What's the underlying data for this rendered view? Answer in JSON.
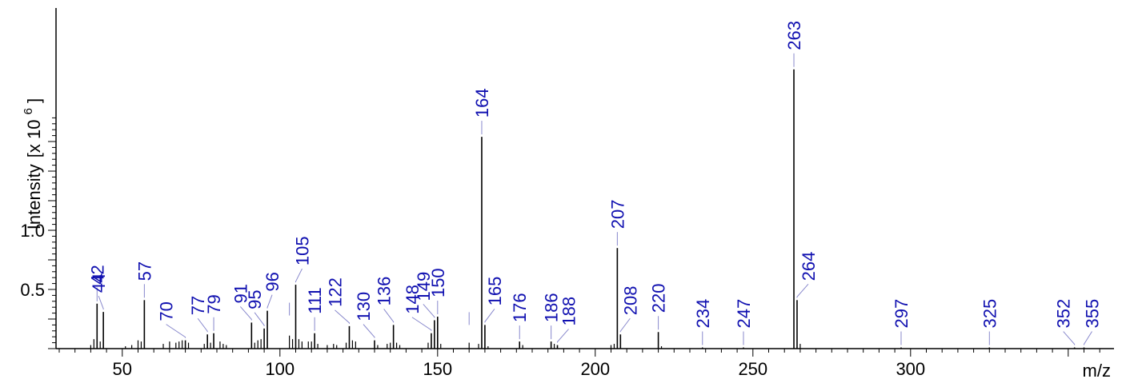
{
  "chart_data": {
    "type": "bar",
    "title": "",
    "xlabel": "m/z",
    "ylabel": "Intensity",
    "ylabel_unit": "[x 10",
    "ylabel_exp": "6",
    "ylabel_close": "]",
    "xlim": [
      30,
      360
    ],
    "ylim": [
      0,
      1.95
    ],
    "x_ticks": [
      "50",
      "100",
      "150",
      "200",
      "250",
      "300"
    ],
    "x_tick_values": [
      50,
      100,
      150,
      200,
      250,
      300
    ],
    "y_ticks": [
      "0.5",
      "1.0"
    ],
    "y_tick_values": [
      0.5,
      1.0
    ],
    "colors": {
      "peak": "#000000",
      "label": "#1010b0",
      "leader": "#8888cc",
      "axis": "#000000"
    },
    "peaks": [
      {
        "x": 42,
        "y": 0.38,
        "label": "42"
      },
      {
        "x": 44,
        "y": 0.31,
        "label": "44"
      },
      {
        "x": 57,
        "y": 0.41,
        "label": "57"
      },
      {
        "x": 70,
        "y": 0.07,
        "label": "70"
      },
      {
        "x": 77,
        "y": 0.12,
        "label": "77"
      },
      {
        "x": 79,
        "y": 0.13,
        "label": "79"
      },
      {
        "x": 91,
        "y": 0.22,
        "label": "91"
      },
      {
        "x": 95,
        "y": 0.17,
        "label": "95"
      },
      {
        "x": 96,
        "y": 0.32,
        "label": "96"
      },
      {
        "x": 105,
        "y": 0.54,
        "label": "105"
      },
      {
        "x": 111,
        "y": 0.13,
        "label": "111"
      },
      {
        "x": 122,
        "y": 0.19,
        "label": "122"
      },
      {
        "x": 130,
        "y": 0.07,
        "label": "130"
      },
      {
        "x": 136,
        "y": 0.2,
        "label": "136"
      },
      {
        "x": 148,
        "y": 0.13,
        "label": "148"
      },
      {
        "x": 149,
        "y": 0.24,
        "label": "149"
      },
      {
        "x": 150,
        "y": 0.27,
        "label": "150"
      },
      {
        "x": 164,
        "y": 1.79,
        "label": "164"
      },
      {
        "x": 165,
        "y": 0.2,
        "label": "165"
      },
      {
        "x": 176,
        "y": 0.06,
        "label": "176"
      },
      {
        "x": 186,
        "y": 0.06,
        "label": "186"
      },
      {
        "x": 188,
        "y": 0.03,
        "label": "188"
      },
      {
        "x": 207,
        "y": 0.85,
        "label": "207"
      },
      {
        "x": 208,
        "y": 0.12,
        "label": "208"
      },
      {
        "x": 220,
        "y": 0.14,
        "label": "220"
      },
      {
        "x": 234,
        "y": 0.01,
        "label": "234"
      },
      {
        "x": 247,
        "y": 0.01,
        "label": "247"
      },
      {
        "x": 263,
        "y": 2.36,
        "label": "263"
      },
      {
        "x": 264,
        "y": 0.41,
        "label": "264"
      },
      {
        "x": 297,
        "y": 0.01,
        "label": "297"
      },
      {
        "x": 325,
        "y": 0.01,
        "label": "325"
      },
      {
        "x": 352,
        "y": 0.01,
        "label": "352"
      },
      {
        "x": 355,
        "y": 0.01,
        "label": "355"
      }
    ],
    "minor_peaks": [
      [
        40,
        0.03
      ],
      [
        41,
        0.08
      ],
      [
        43,
        0.06
      ],
      [
        51,
        0.02
      ],
      [
        53,
        0.03
      ],
      [
        55,
        0.07
      ],
      [
        56,
        0.06
      ],
      [
        63,
        0.04
      ],
      [
        65,
        0.06
      ],
      [
        67,
        0.05
      ],
      [
        68,
        0.06
      ],
      [
        69,
        0.07
      ],
      [
        71,
        0.05
      ],
      [
        76,
        0.04
      ],
      [
        78,
        0.05
      ],
      [
        81,
        0.06
      ],
      [
        82,
        0.04
      ],
      [
        83,
        0.03
      ],
      [
        92,
        0.05
      ],
      [
        93,
        0.07
      ],
      [
        94,
        0.08
      ],
      [
        103,
        0.11
      ],
      [
        104,
        0.08
      ],
      [
        106,
        0.08
      ],
      [
        107,
        0.06
      ],
      [
        109,
        0.06
      ],
      [
        110,
        0.06
      ],
      [
        112,
        0.04
      ],
      [
        115,
        0.03
      ],
      [
        117,
        0.04
      ],
      [
        118,
        0.03
      ],
      [
        121,
        0.05
      ],
      [
        123,
        0.07
      ],
      [
        124,
        0.06
      ],
      [
        131,
        0.03
      ],
      [
        134,
        0.04
      ],
      [
        135,
        0.05
      ],
      [
        137,
        0.05
      ],
      [
        138,
        0.03
      ],
      [
        147,
        0.05
      ],
      [
        151,
        0.04
      ],
      [
        160,
        0.05
      ],
      [
        163,
        0.04
      ],
      [
        166,
        0.02
      ],
      [
        177,
        0.03
      ],
      [
        187,
        0.04
      ],
      [
        205,
        0.03
      ],
      [
        206,
        0.04
      ],
      [
        221,
        0.02
      ],
      [
        265,
        0.04
      ]
    ],
    "label_stubs": [
      {
        "x": 103,
        "y": 0.28
      },
      {
        "x": 160,
        "y": 0.2
      }
    ]
  }
}
